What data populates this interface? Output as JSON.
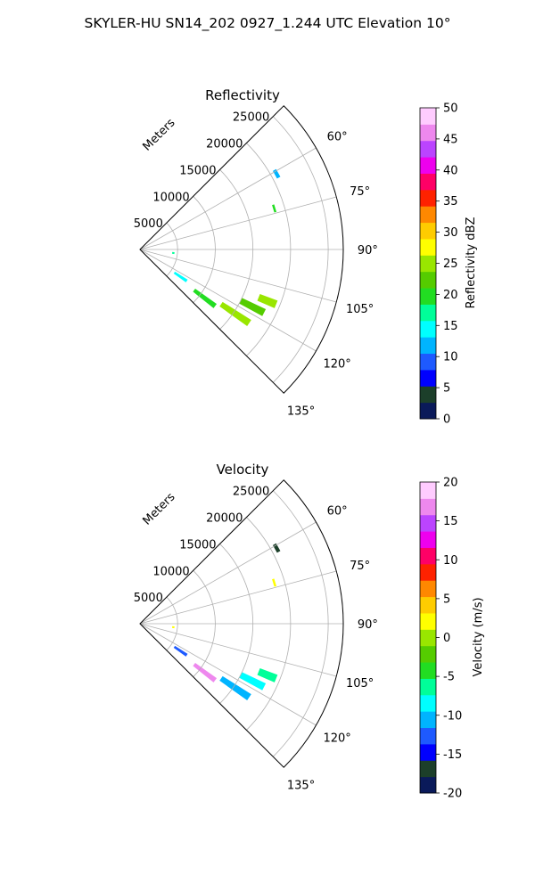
{
  "figure": {
    "title": "SKYLER-HU  SN14_202  0927_1.244 UTC Elevation 10°"
  },
  "chart_data": [
    {
      "type": "polar-sector",
      "title": "Reflectivity",
      "radial_label": "Meters",
      "theta_range_deg": [
        45,
        135
      ],
      "r_range_m": [
        0,
        27000
      ],
      "radial_ticks": [
        "5000",
        "10000",
        "15000",
        "20000",
        "25000"
      ],
      "radial_tick_values": [
        5000,
        10000,
        15000,
        20000,
        25000
      ],
      "angle_ticks": [
        "60°",
        "75°",
        "90°",
        "105°",
        "120°",
        "135°"
      ],
      "angle_tick_values": [
        60,
        75,
        90,
        105,
        120,
        135
      ],
      "grid": true,
      "colorbar": {
        "label": "Reflectivity dBZ",
        "range": [
          0,
          50
        ],
        "ticks": [
          "0",
          "5",
          "10",
          "15",
          "20",
          "25",
          "30",
          "35",
          "40",
          "45",
          "50"
        ],
        "tick_values": [
          0,
          5,
          10,
          15,
          20,
          25,
          30,
          35,
          40,
          45,
          50
        ],
        "colors": [
          "#0a1a5a",
          "#1c3f2a",
          "#0000ff",
          "#1e5aff",
          "#00b4ff",
          "#00ffff",
          "#00ff99",
          "#22dd22",
          "#55cc00",
          "#99e600",
          "#ffff00",
          "#ffcc00",
          "#ff8800",
          "#ff2200",
          "#ff0066",
          "#ee00ee",
          "#bb44ff",
          "#ee88ee",
          "#ffccff"
        ]
      },
      "echoes": [
        {
          "theta": 124,
          "r": [
            5500,
            7500
          ],
          "value": 14
        },
        {
          "theta": 127,
          "r": [
            9000,
            12500
          ],
          "value": 20
        },
        {
          "theta": 124,
          "r": [
            13000,
            17500
          ],
          "value": 24
        },
        {
          "theta": 117,
          "r": [
            15000,
            18500
          ],
          "value": 22
        },
        {
          "theta": 112,
          "r": [
            17000,
            19500
          ],
          "value": 24
        },
        {
          "theta": 73,
          "r": [
            18500,
            18800
          ],
          "value": 20
        },
        {
          "theta": 61,
          "r": [
            20500,
            21000
          ],
          "value": 12
        },
        {
          "theta": 96,
          "r": [
            4300,
            4600
          ],
          "value": 18
        }
      ]
    },
    {
      "type": "polar-sector",
      "title": "Velocity",
      "radial_label": "Meters",
      "theta_range_deg": [
        45,
        135
      ],
      "r_range_m": [
        0,
        27000
      ],
      "radial_ticks": [
        "5000",
        "10000",
        "15000",
        "20000",
        "25000"
      ],
      "radial_tick_values": [
        5000,
        10000,
        15000,
        20000,
        25000
      ],
      "angle_ticks": [
        "60°",
        "75°",
        "90°",
        "105°",
        "120°",
        "135°"
      ],
      "angle_tick_values": [
        60,
        75,
        90,
        105,
        120,
        135
      ],
      "grid": true,
      "colorbar": {
        "label": "Velocity (m/s)",
        "range": [
          -20,
          20
        ],
        "ticks": [
          "-20",
          "-15",
          "-10",
          "-5",
          "0",
          "5",
          "10",
          "15",
          "20"
        ],
        "tick_values": [
          -20,
          -15,
          -10,
          -5,
          0,
          5,
          10,
          15,
          20
        ],
        "colors": [
          "#0a1a5a",
          "#1c3f2a",
          "#0000ff",
          "#1e5aff",
          "#00b4ff",
          "#00ffff",
          "#00ff99",
          "#22dd22",
          "#55cc00",
          "#99e600",
          "#ffff00",
          "#ffcc00",
          "#ff8800",
          "#ff2200",
          "#ff0066",
          "#ee00ee",
          "#bb44ff",
          "#ee88ee",
          "#ffccff"
        ]
      },
      "echoes": [
        {
          "theta": 124,
          "r": [
            5500,
            7500
          ],
          "value": -13
        },
        {
          "theta": 127,
          "r": [
            9000,
            12500
          ],
          "value": 16
        },
        {
          "theta": 124,
          "r": [
            13000,
            17500
          ],
          "value": -11
        },
        {
          "theta": 117,
          "r": [
            15000,
            18500
          ],
          "value": -9
        },
        {
          "theta": 112,
          "r": [
            17000,
            19500
          ],
          "value": -7
        },
        {
          "theta": 73,
          "r": [
            18500,
            18800
          ],
          "value": 2
        },
        {
          "theta": 61,
          "r": [
            20500,
            21000
          ],
          "value": -17
        },
        {
          "theta": 96,
          "r": [
            4300,
            4600
          ],
          "value": 3
        }
      ]
    }
  ]
}
